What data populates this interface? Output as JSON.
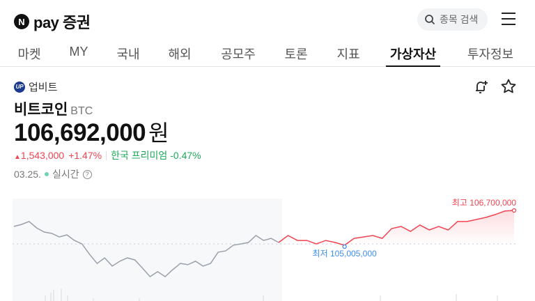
{
  "header": {
    "logo_badge": "N",
    "logo": "pay 증권",
    "search_placeholder": "종목 검색"
  },
  "tabs": [
    {
      "label": "마켓"
    },
    {
      "label": "MY"
    },
    {
      "label": "국내"
    },
    {
      "label": "해외"
    },
    {
      "label": "공모주"
    },
    {
      "label": "토론"
    },
    {
      "label": "지표"
    },
    {
      "label": "가상자산",
      "active": true
    },
    {
      "label": "투자정보"
    }
  ],
  "asset": {
    "exchange_logo": "UP",
    "exchange": "업비트",
    "name": "비트코인",
    "ticker": "BTC",
    "price": "106,692,000",
    "unit": "원",
    "change_arrow": "▲",
    "change": "1,543,000",
    "change_pct": "+1.47%",
    "premium_label": "한국 프리미엄",
    "premium": "-0.47%",
    "date": "03.25.",
    "live": "실시간",
    "help": "?"
  },
  "colors": {
    "up": "#f04452",
    "premium": "#1daa5a",
    "low": "#3c8ef0",
    "past": "#9aa1ab"
  },
  "chart_data": {
    "type": "line",
    "unit": "백만원",
    "high_label": "최고 106,700,000",
    "low_label": "최저 105,005,000",
    "previous_session": [
      105.92,
      106.02,
      106.16,
      105.85,
      105.65,
      105.58,
      105.41,
      105.51,
      105.24,
      105.07,
      104.56,
      104.12,
      104.39,
      103.99,
      104.23,
      104.39,
      104.29,
      103.89,
      103.48,
      103.72,
      103.48,
      103.82,
      104.12,
      104.06,
      104.23,
      103.99,
      104.12,
      104.67,
      104.73,
      105.01,
      105.07,
      105.14,
      105.48,
      105.24,
      105.34,
      105.14
    ],
    "current_session": [
      105.14,
      105.48,
      105.24,
      105.24,
      105.07,
      105.24,
      105.14,
      105.005,
      105.34,
      105.41,
      105.48,
      105.34,
      105.82,
      105.92,
      105.68,
      105.99,
      105.75,
      105.92,
      105.75,
      106.16,
      106.16,
      106.26,
      106.36,
      106.5,
      106.67,
      106.7
    ],
    "baseline": 105.07
  }
}
